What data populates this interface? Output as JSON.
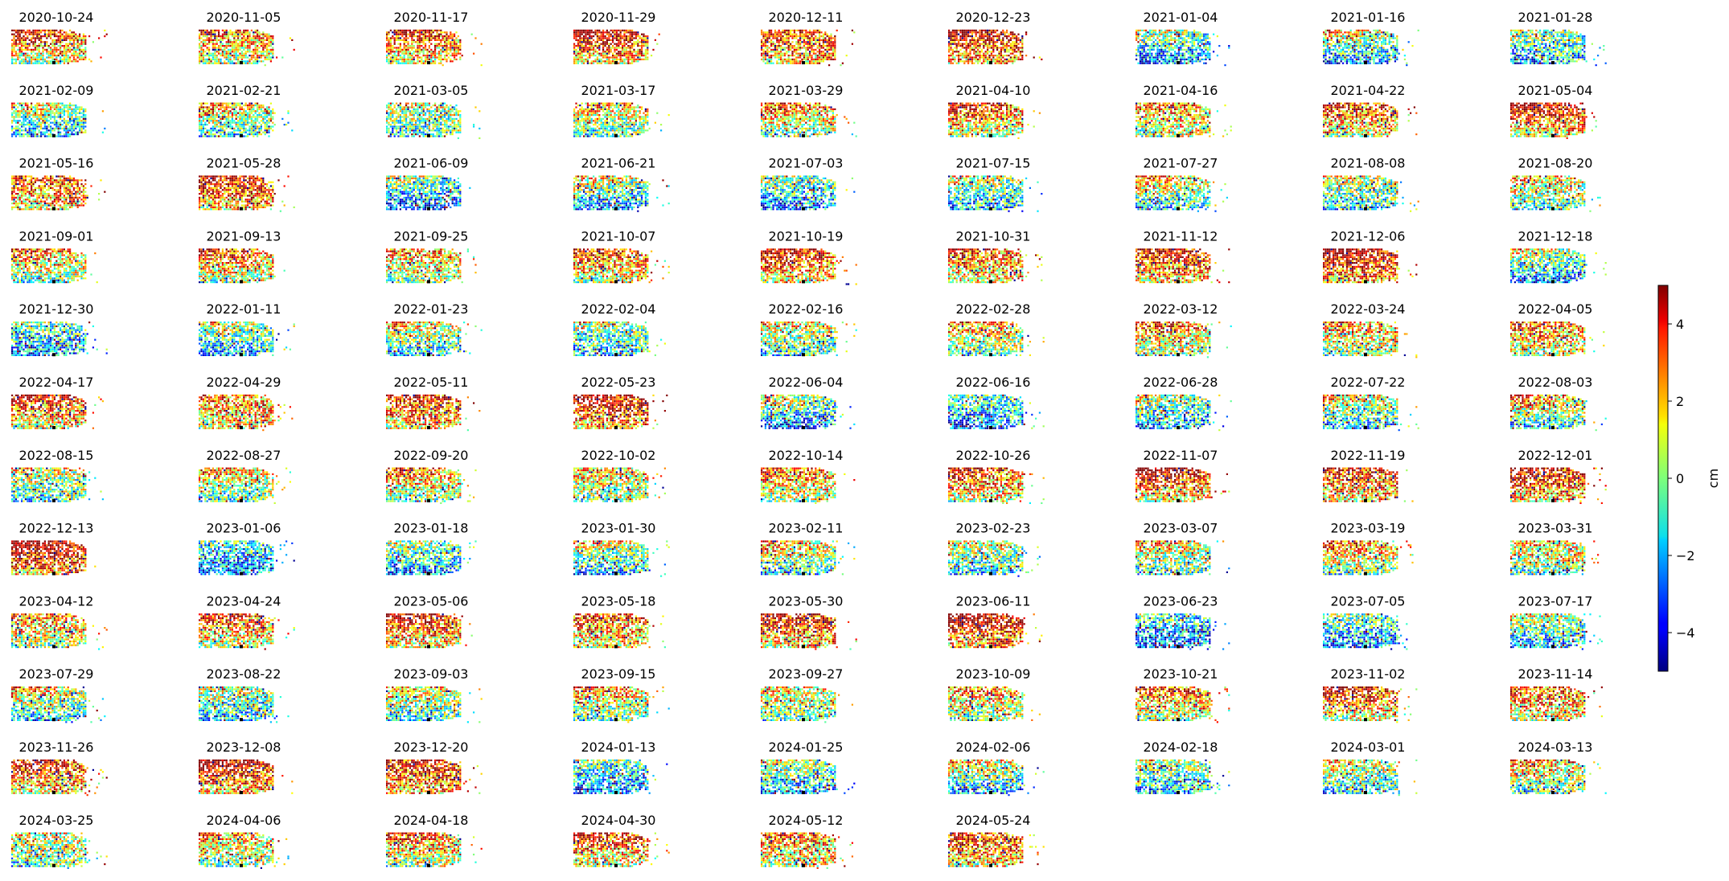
{
  "chart_data": {
    "type": "heatmap",
    "title": "",
    "panels": {
      "columns": 9,
      "dates": [
        "2020-10-24",
        "2020-11-05",
        "2020-11-17",
        "2020-11-29",
        "2020-12-11",
        "2020-12-23",
        "2021-01-04",
        "2021-01-16",
        "2021-01-28",
        "2021-02-09",
        "2021-02-21",
        "2021-03-05",
        "2021-03-17",
        "2021-03-29",
        "2021-04-10",
        "2021-04-16",
        "2021-04-22",
        "2021-05-04",
        "2021-05-16",
        "2021-05-28",
        "2021-06-09",
        "2021-06-21",
        "2021-07-03",
        "2021-07-15",
        "2021-07-27",
        "2021-08-08",
        "2021-08-20",
        "2021-09-01",
        "2021-09-13",
        "2021-09-25",
        "2021-10-07",
        "2021-10-19",
        "2021-10-31",
        "2021-11-12",
        "2021-12-06",
        "2021-12-18",
        "2021-12-30",
        "2022-01-11",
        "2022-01-23",
        "2022-02-04",
        "2022-02-16",
        "2022-02-28",
        "2022-03-12",
        "2022-03-24",
        "2022-04-05",
        "2022-04-17",
        "2022-04-29",
        "2022-05-11",
        "2022-05-23",
        "2022-06-04",
        "2022-06-16",
        "2022-06-28",
        "2022-07-22",
        "2022-08-03",
        "2022-08-15",
        "2022-08-27",
        "2022-09-20",
        "2022-10-02",
        "2022-10-14",
        "2022-10-26",
        "2022-11-07",
        "2022-11-19",
        "2022-12-01",
        "2022-12-13",
        "2023-01-06",
        "2023-01-18",
        "2023-01-30",
        "2023-02-11",
        "2023-02-23",
        "2023-03-07",
        "2023-03-19",
        "2023-03-31",
        "2023-04-12",
        "2023-04-24",
        "2023-05-06",
        "2023-05-18",
        "2023-05-30",
        "2023-06-11",
        "2023-06-23",
        "2023-07-05",
        "2023-07-17",
        "2023-07-29",
        "2023-08-22",
        "2023-09-03",
        "2023-09-15",
        "2023-09-27",
        "2023-10-09",
        "2023-10-21",
        "2023-11-02",
        "2023-11-14",
        "2023-11-26",
        "2023-12-08",
        "2023-12-20",
        "2024-01-13",
        "2024-01-25",
        "2024-02-06",
        "2024-02-18",
        "2024-03-01",
        "2024-03-13",
        "2024-03-25",
        "2024-04-06",
        "2024-04-18",
        "2024-04-30",
        "2024-05-12",
        "2024-05-24"
      ]
    },
    "colormap": "jet",
    "colorbar": {
      "label": "cm",
      "min": -5,
      "max": 5,
      "ticks": [
        4,
        2,
        0,
        -2,
        -4
      ],
      "tick_labels": [
        "4",
        "2",
        "0",
        "−2",
        "−4"
      ],
      "placement": "right"
    },
    "reference_point_color": "#000000",
    "grid": false,
    "axes_visible": false
  }
}
